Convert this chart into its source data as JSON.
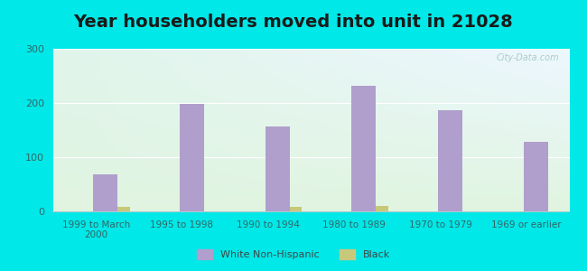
{
  "title": "Year householders moved into unit in 21028",
  "categories": [
    "1999 to March\n2000",
    "1995 to 1998",
    "1990 to 1994",
    "1980 to 1989",
    "1970 to 1979",
    "1969 or earlier"
  ],
  "white_values": [
    68,
    199,
    157,
    232,
    187,
    129
  ],
  "black_values": [
    8,
    0,
    8,
    10,
    0,
    0
  ],
  "white_color": "#b09fcc",
  "black_color": "#c8c87a",
  "ylim": [
    0,
    300
  ],
  "yticks": [
    0,
    100,
    200,
    300
  ],
  "background_outer": "#00e8e8",
  "background_inner_topleft": "#d8ede0",
  "background_inner_topright": "#daeef5",
  "background_inner_bottom": "#e8f5e8",
  "bar_width": 0.28,
  "title_fontsize": 14,
  "legend_labels": [
    "White Non-Hispanic",
    "Black"
  ],
  "watermark": "City-Data.com"
}
